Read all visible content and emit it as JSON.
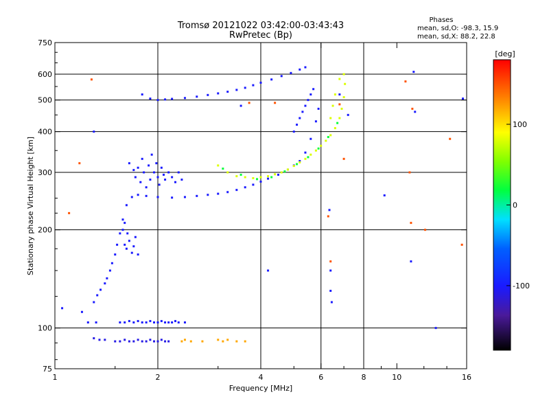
{
  "chart_data": {
    "type": "scatter",
    "title": "Tromsø 20121022 03:42:00-03:43:43",
    "subtitle": "RwPretec (Bp)",
    "xlabel": "Frequency [MHz]",
    "ylabel": "Stationary phase Virtual Height [km]",
    "x_scale": "log",
    "y_scale": "log",
    "xlim": [
      1,
      16
    ],
    "ylim": [
      75,
      750
    ],
    "x_ticks": [
      {
        "value": 1,
        "label": "1"
      },
      {
        "value": 2,
        "label": "2"
      },
      {
        "value": 4,
        "label": "4"
      },
      {
        "value": 6,
        "label": "6"
      },
      {
        "value": 8,
        "label": "8"
      },
      {
        "value": 10,
        "label": "10"
      },
      {
        "value": 16,
        "label": "16"
      }
    ],
    "y_ticks": [
      {
        "value": 75,
        "label": "75"
      },
      {
        "value": 100,
        "label": "100"
      },
      {
        "value": 200,
        "label": "200"
      },
      {
        "value": 300,
        "label": "300"
      },
      {
        "value": 400,
        "label": "400"
      },
      {
        "value": 500,
        "label": "500"
      },
      {
        "value": 600,
        "label": "600"
      },
      {
        "value": 750,
        "label": "750"
      }
    ],
    "grid_x": [
      2,
      4,
      6,
      8
    ],
    "grid_y": [
      100,
      200,
      300,
      400,
      500,
      600
    ],
    "stats": {
      "heading": "Phases",
      "line_o": "mean, sd,O: -98.3, 15.9",
      "line_x": "mean, sd,X:  88.2, 22.8"
    },
    "colorbar": {
      "label": "[deg]",
      "range": [
        -180,
        180
      ],
      "ticks": [
        {
          "value": 100,
          "label": "100"
        },
        {
          "value": 0,
          "label": "0"
        },
        {
          "value": -100,
          "label": "-100"
        }
      ]
    },
    "traces": [
      {
        "name": "o_main",
        "phase": -100,
        "points": [
          [
            1.05,
            115
          ],
          [
            1.2,
            112
          ],
          [
            1.3,
            120
          ],
          [
            1.33,
            126
          ],
          [
            1.36,
            131
          ],
          [
            1.4,
            137
          ],
          [
            1.42,
            142
          ],
          [
            1.45,
            150
          ],
          [
            1.47,
            158
          ],
          [
            1.5,
            168
          ],
          [
            1.52,
            180
          ],
          [
            1.55,
            195
          ],
          [
            1.58,
            215
          ],
          [
            1.62,
            238
          ],
          [
            1.68,
            252
          ],
          [
            1.75,
            256
          ],
          [
            1.85,
            254
          ],
          [
            2.0,
            252
          ],
          [
            2.2,
            251
          ],
          [
            2.4,
            252
          ],
          [
            2.6,
            254
          ],
          [
            2.8,
            256
          ],
          [
            3.0,
            258
          ],
          [
            3.2,
            261
          ],
          [
            3.4,
            265
          ],
          [
            3.6,
            270
          ],
          [
            3.8,
            275
          ],
          [
            4.0,
            281
          ],
          [
            4.2,
            287
          ],
          [
            4.5,
            295
          ],
          [
            4.8,
            306
          ],
          [
            5.0,
            315
          ],
          [
            5.2,
            325
          ],
          [
            5.4,
            345
          ],
          [
            5.6,
            380
          ],
          [
            5.8,
            430
          ],
          [
            5.9,
            470
          ]
        ]
      },
      {
        "name": "o_spread",
        "phase": -100,
        "points": [
          [
            1.65,
            320
          ],
          [
            1.7,
            305
          ],
          [
            1.72,
            290
          ],
          [
            1.75,
            310
          ],
          [
            1.78,
            280
          ],
          [
            1.8,
            330
          ],
          [
            1.82,
            300
          ],
          [
            1.85,
            270
          ],
          [
            1.88,
            315
          ],
          [
            1.9,
            285
          ],
          [
            1.92,
            340
          ],
          [
            1.95,
            300
          ],
          [
            1.98,
            320
          ],
          [
            2.0,
            290
          ],
          [
            2.02,
            275
          ],
          [
            2.05,
            310
          ],
          [
            2.08,
            295
          ],
          [
            2.1,
            285
          ],
          [
            2.15,
            300
          ],
          [
            2.2,
            290
          ],
          [
            2.25,
            280
          ],
          [
            2.3,
            300
          ],
          [
            2.35,
            285
          ],
          [
            1.6,
            180
          ],
          [
            1.62,
            175
          ],
          [
            1.65,
            185
          ],
          [
            1.68,
            170
          ],
          [
            1.7,
            178
          ],
          [
            1.72,
            190
          ],
          [
            1.75,
            168
          ],
          [
            1.58,
            200
          ],
          [
            1.6,
            210
          ],
          [
            1.63,
            195
          ]
        ]
      },
      {
        "name": "o_upper",
        "phase": -100,
        "points": [
          [
            1.8,
            520
          ],
          [
            1.9,
            505
          ],
          [
            2.0,
            500
          ],
          [
            2.1,
            502
          ],
          [
            2.2,
            504
          ],
          [
            2.4,
            507
          ],
          [
            2.6,
            512
          ],
          [
            2.8,
            518
          ],
          [
            3.0,
            524
          ],
          [
            3.2,
            530
          ],
          [
            3.4,
            537
          ],
          [
            3.6,
            545
          ],
          [
            3.8,
            555
          ],
          [
            4.0,
            565
          ],
          [
            4.3,
            578
          ],
          [
            4.6,
            592
          ],
          [
            4.9,
            605
          ],
          [
            5.2,
            620
          ],
          [
            5.4,
            630
          ]
        ]
      },
      {
        "name": "o_steep",
        "phase": -100,
        "points": [
          [
            5.0,
            400
          ],
          [
            5.1,
            420
          ],
          [
            5.2,
            440
          ],
          [
            5.3,
            460
          ],
          [
            5.4,
            480
          ],
          [
            5.5,
            500
          ],
          [
            5.6,
            520
          ],
          [
            5.7,
            540
          ]
        ]
      },
      {
        "name": "x_trace",
        "phase": 80,
        "points": [
          [
            3.0,
            315
          ],
          [
            3.2,
            300
          ],
          [
            3.4,
            292
          ],
          [
            3.6,
            290
          ],
          [
            3.8,
            288
          ],
          [
            4.0,
            290
          ],
          [
            4.2,
            292
          ],
          [
            4.4,
            296
          ],
          [
            4.6,
            300
          ],
          [
            4.8,
            306
          ],
          [
            5.0,
            314
          ],
          [
            5.2,
            322
          ],
          [
            5.4,
            330
          ],
          [
            5.6,
            340
          ],
          [
            5.8,
            350
          ],
          [
            6.0,
            362
          ],
          [
            6.2,
            375
          ],
          [
            6.4,
            390
          ],
          [
            6.6,
            410
          ],
          [
            6.8,
            440
          ],
          [
            6.9,
            470
          ],
          [
            7.0,
            510
          ],
          [
            7.05,
            560
          ],
          [
            7.0,
            600
          ],
          [
            6.8,
            580
          ],
          [
            6.6,
            520
          ],
          [
            6.5,
            480
          ],
          [
            6.4,
            440
          ]
        ]
      },
      {
        "name": "x_mixed",
        "phase": 20,
        "points": [
          [
            3.1,
            308
          ],
          [
            3.5,
            295
          ],
          [
            3.9,
            286
          ],
          [
            4.3,
            290
          ],
          [
            4.7,
            302
          ],
          [
            5.1,
            318
          ],
          [
            5.5,
            334
          ],
          [
            5.9,
            355
          ],
          [
            6.3,
            385
          ],
          [
            6.7,
            425
          ]
        ]
      },
      {
        "name": "o_low1",
        "phase": -100,
        "points": [
          [
            1.55,
            104
          ],
          [
            1.6,
            104
          ],
          [
            1.65,
            105
          ],
          [
            1.7,
            104
          ],
          [
            1.75,
            105
          ],
          [
            1.8,
            104
          ],
          [
            1.85,
            104
          ],
          [
            1.9,
            105
          ],
          [
            1.95,
            104
          ],
          [
            2.0,
            104
          ],
          [
            2.05,
            105
          ],
          [
            2.1,
            104
          ],
          [
            2.15,
            104
          ],
          [
            2.2,
            104
          ],
          [
            2.25,
            105
          ],
          [
            2.3,
            104
          ],
          [
            2.4,
            104
          ],
          [
            1.25,
            104
          ],
          [
            1.32,
            104
          ]
        ]
      },
      {
        "name": "o_low2",
        "phase": -110,
        "points": [
          [
            1.4,
            92
          ],
          [
            1.5,
            91
          ],
          [
            1.55,
            91
          ],
          [
            1.6,
            92
          ],
          [
            1.65,
            91
          ],
          [
            1.7,
            91
          ],
          [
            1.75,
            92
          ],
          [
            1.8,
            91
          ],
          [
            1.85,
            91
          ],
          [
            1.9,
            92
          ],
          [
            1.95,
            91
          ],
          [
            2.0,
            91
          ],
          [
            2.05,
            92
          ],
          [
            2.1,
            91
          ],
          [
            2.15,
            91
          ],
          [
            1.3,
            93
          ],
          [
            1.35,
            92
          ]
        ]
      },
      {
        "name": "x_low2",
        "phase": 120,
        "points": [
          [
            2.35,
            91
          ],
          [
            2.4,
            92
          ],
          [
            2.5,
            91
          ],
          [
            2.7,
            91
          ],
          [
            3.0,
            92
          ],
          [
            3.1,
            91
          ],
          [
            3.2,
            92
          ],
          [
            3.4,
            91
          ],
          [
            3.6,
            91
          ]
        ]
      },
      {
        "name": "scatter_misc",
        "phase": 150,
        "points": [
          [
            1.28,
            578
          ],
          [
            1.18,
            320
          ],
          [
            1.1,
            225
          ],
          [
            3.7,
            490
          ],
          [
            4.4,
            490
          ],
          [
            6.3,
            220
          ],
          [
            6.4,
            160
          ],
          [
            10.6,
            570
          ],
          [
            11.1,
            470
          ],
          [
            10.9,
            300
          ],
          [
            14.3,
            380
          ],
          [
            15.5,
            180
          ],
          [
            12.1,
            200
          ],
          [
            11.0,
            210
          ],
          [
            6.8,
            485
          ],
          [
            7.0,
            330
          ]
        ]
      },
      {
        "name": "scatter_misc_blue",
        "phase": -100,
        "points": [
          [
            1.3,
            400
          ],
          [
            3.5,
            480
          ],
          [
            4.2,
            150
          ],
          [
            6.35,
            230
          ],
          [
            6.4,
            150
          ],
          [
            6.4,
            130
          ],
          [
            6.45,
            120
          ],
          [
            11.2,
            610
          ],
          [
            11.0,
            160
          ],
          [
            11.3,
            460
          ],
          [
            13.0,
            100
          ],
          [
            15.6,
            505
          ],
          [
            9.2,
            255
          ],
          [
            6.8,
            520
          ],
          [
            7.2,
            450
          ]
        ]
      }
    ]
  }
}
